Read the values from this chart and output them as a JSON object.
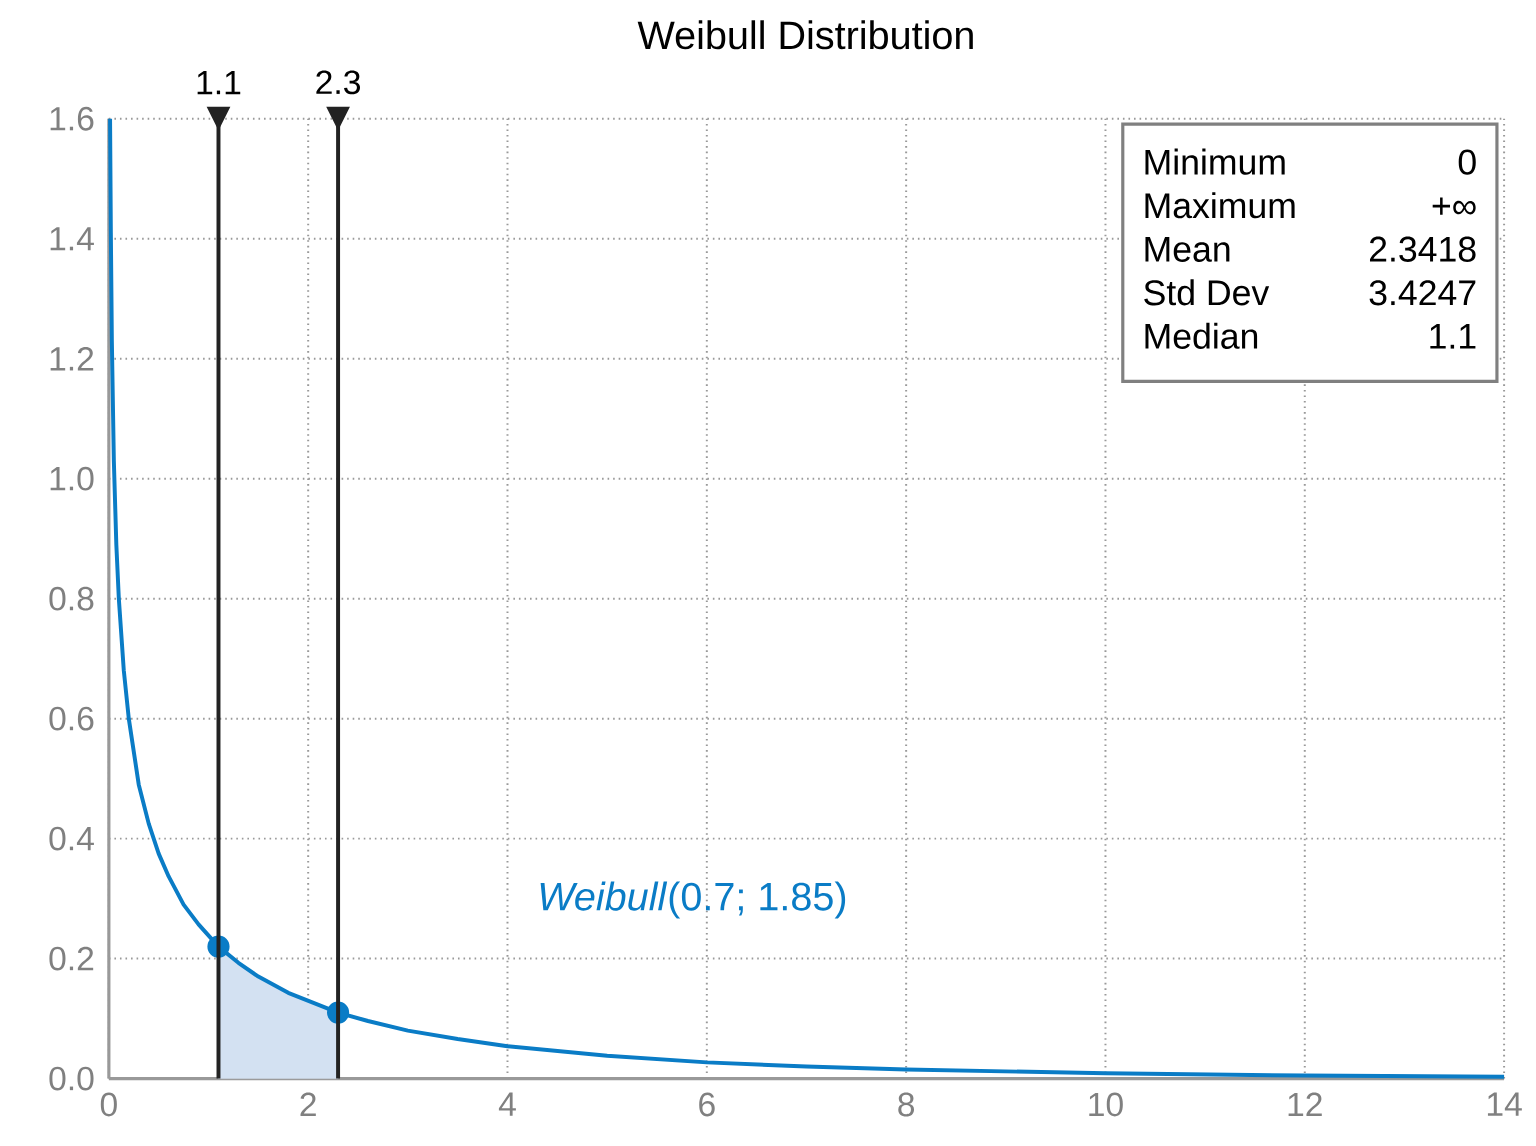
{
  "chart_data": {
    "type": "line",
    "title": "Weibull Distribution",
    "xlim": [
      0,
      14
    ],
    "ylim": [
      0,
      1.6
    ],
    "xticks": [
      0,
      2,
      4,
      6,
      8,
      10,
      12,
      14
    ],
    "yticks": [
      {
        "value": 0,
        "label": "0.0"
      },
      {
        "value": 0.2,
        "label": "0.2"
      },
      {
        "value": 0.4,
        "label": "0.4"
      },
      {
        "value": 0.6,
        "label": "0.6"
      },
      {
        "value": 0.8,
        "label": "0.8"
      },
      {
        "value": 1.0,
        "label": "1.0"
      },
      {
        "value": 1.2,
        "label": "1.2"
      },
      {
        "value": 1.4,
        "label": "1.4"
      },
      {
        "value": 1.6,
        "label": "1.6"
      }
    ],
    "grid": true,
    "series": [
      {
        "type": "line",
        "name": "*Weibull*(0.7; 1.85)",
        "color": "#0a7cc6",
        "x": [
          0.012,
          0.02,
          0.03,
          0.05,
          0.075,
          0.1,
          0.15,
          0.2,
          0.3,
          0.4,
          0.5,
          0.6,
          0.75,
          0.9,
          1.1,
          1.3,
          1.5,
          1.8,
          2.3,
          2.6,
          3,
          3.5,
          4,
          5,
          6,
          7,
          8,
          10,
          12,
          14
        ],
        "values": [
          1.6,
          1.41,
          1.23,
          1.03,
          0.89,
          0.8,
          0.68,
          0.6,
          0.49,
          0.425,
          0.375,
          0.337,
          0.29,
          0.257,
          0.22,
          0.193,
          0.17,
          0.143,
          0.11,
          0.096,
          0.08,
          0.066,
          0.054,
          0.038,
          0.027,
          0.02,
          0.015,
          0.009,
          0.005,
          0.003
        ]
      },
      {
        "type": "area",
        "color": "#d3e1f2",
        "x": [
          1.1,
          1.3,
          1.5,
          1.8,
          2.3
        ],
        "values": [
          0.22,
          0.193,
          0.17,
          0.143,
          0.11
        ]
      },
      {
        "type": "scatter",
        "marker": "circle",
        "color": "#0a7cc6",
        "x": [
          1.1,
          2.3
        ],
        "values": [
          0.22,
          0.11
        ]
      }
    ],
    "ref_lines": [
      {
        "axis": "x",
        "value": 1.1,
        "label": "1.1",
        "color": "#222222"
      },
      {
        "axis": "x",
        "value": 2.3,
        "label": "2.3",
        "color": "#222222"
      }
    ],
    "annotations": [
      "Minimum",
      "0",
      "Maximum",
      "+∞",
      "Mean",
      "2.3418",
      "Std Dev",
      "3.4247",
      "Median",
      "1.1"
    ]
  }
}
